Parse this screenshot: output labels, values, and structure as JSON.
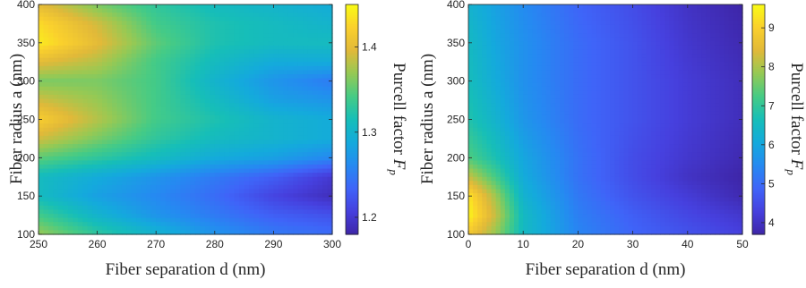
{
  "chart_data": [
    {
      "type": "heatmap",
      "xlabel": "Fiber separation d (nm)",
      "ylabel": "Fiber radius a (nm)",
      "colorbar_label": "Purcell factor ",
      "colorbar_symbol": "F",
      "colorbar_subscript": "p",
      "xlim": [
        250,
        300
      ],
      "ylim": [
        100,
        400
      ],
      "xticks": [
        "250",
        "260",
        "270",
        "280",
        "290",
        "300"
      ],
      "yticks": [
        "100",
        "150",
        "200",
        "250",
        "300",
        "350",
        "400"
      ],
      "colorbar_range": [
        1.18,
        1.45
      ],
      "colorbar_ticks": [
        "1.2",
        "1.3",
        "1.4"
      ],
      "colormap": "parula",
      "grid_x": [
        250,
        260,
        270,
        280,
        290,
        300
      ],
      "grid_y": [
        100,
        125,
        150,
        175,
        200,
        225,
        250,
        275,
        300,
        325,
        350,
        375,
        400
      ],
      "values": [
        [
          1.37,
          1.33,
          1.3,
          1.27,
          1.25,
          1.24
        ],
        [
          1.34,
          1.3,
          1.27,
          1.25,
          1.23,
          1.22
        ],
        [
          1.31,
          1.28,
          1.26,
          1.24,
          1.21,
          1.19
        ],
        [
          1.31,
          1.29,
          1.27,
          1.25,
          1.23,
          1.2
        ],
        [
          1.35,
          1.33,
          1.31,
          1.29,
          1.28,
          1.26
        ],
        [
          1.39,
          1.36,
          1.33,
          1.31,
          1.3,
          1.29
        ],
        [
          1.42,
          1.38,
          1.34,
          1.32,
          1.3,
          1.29
        ],
        [
          1.39,
          1.37,
          1.34,
          1.31,
          1.28,
          1.27
        ],
        [
          1.36,
          1.36,
          1.34,
          1.3,
          1.27,
          1.25
        ],
        [
          1.4,
          1.38,
          1.34,
          1.31,
          1.29,
          1.29
        ],
        [
          1.44,
          1.4,
          1.35,
          1.32,
          1.31,
          1.31
        ],
        [
          1.43,
          1.39,
          1.34,
          1.32,
          1.31,
          1.3
        ],
        [
          1.4,
          1.36,
          1.33,
          1.31,
          1.3,
          1.29
        ]
      ]
    },
    {
      "type": "heatmap",
      "xlabel": "Fiber separation d (nm)",
      "ylabel": "Fiber radius a (nm)",
      "colorbar_label": "Purcell factor ",
      "colorbar_symbol": "F",
      "colorbar_subscript": "p",
      "xlim": [
        0,
        50
      ],
      "ylim": [
        100,
        400
      ],
      "xticks": [
        "0",
        "10",
        "20",
        "30",
        "40",
        "50"
      ],
      "yticks": [
        "100",
        "150",
        "200",
        "250",
        "300",
        "350",
        "400"
      ],
      "colorbar_range": [
        3.7,
        9.6
      ],
      "colorbar_ticks": [
        "4",
        "5",
        "6",
        "7",
        "8",
        "9"
      ],
      "colormap": "parula",
      "grid_x": [
        0,
        5,
        10,
        20,
        30,
        40,
        50
      ],
      "grid_y": [
        100,
        125,
        150,
        175,
        200,
        250,
        300,
        350,
        400
      ],
      "values": [
        [
          8.8,
          7.8,
          6.5,
          5.4,
          4.9,
          4.6,
          4.3
        ],
        [
          9.5,
          8.2,
          6.5,
          5.3,
          4.8,
          4.4,
          4.1
        ],
        [
          9.3,
          7.9,
          6.3,
          5.2,
          4.6,
          4.2,
          3.8
        ],
        [
          8.2,
          7.2,
          6.1,
          5.1,
          4.5,
          4.0,
          3.7
        ],
        [
          7.3,
          6.7,
          6.0,
          5.1,
          4.5,
          4.1,
          3.8
        ],
        [
          6.8,
          6.3,
          5.7,
          5.0,
          4.6,
          4.2,
          3.9
        ],
        [
          6.6,
          6.1,
          5.6,
          5.0,
          4.6,
          4.2,
          3.9
        ],
        [
          6.5,
          6.0,
          5.6,
          5.0,
          4.6,
          4.1,
          3.8
        ],
        [
          6.3,
          5.9,
          5.5,
          4.9,
          4.5,
          4.0,
          3.7
        ]
      ]
    }
  ]
}
